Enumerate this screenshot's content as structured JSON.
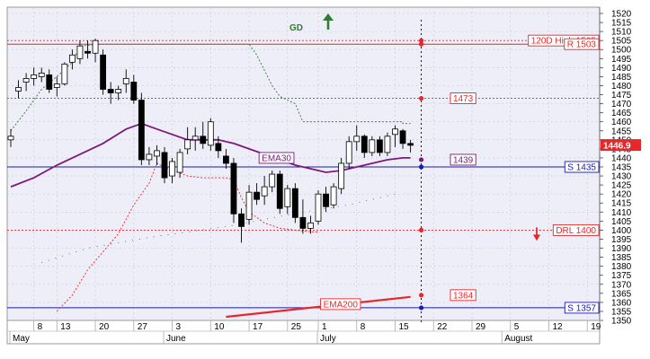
{
  "chart_data": {
    "type": "candlestick",
    "title": "",
    "ylim": [
      1350,
      1520
    ],
    "y_ticks": [
      1350,
      1355,
      1360,
      1365,
      1370,
      1375,
      1380,
      1385,
      1390,
      1395,
      1400,
      1405,
      1410,
      1415,
      1420,
      1425,
      1430,
      1435,
      1440,
      1445,
      1450,
      1455,
      1460,
      1465,
      1470,
      1475,
      1480,
      1485,
      1490,
      1495,
      1500,
      1505,
      1510,
      1515,
      1520
    ],
    "x_ticks": [
      {
        "label": "8",
        "x": 3
      },
      {
        "label": "13",
        "x": 6
      },
      {
        "label": "20",
        "x": 11
      },
      {
        "label": "27",
        "x": 16
      },
      {
        "label": "3",
        "x": 21
      },
      {
        "label": "10",
        "x": 26
      },
      {
        "label": "17",
        "x": 31
      },
      {
        "label": "25",
        "x": 36
      },
      {
        "label": "1",
        "x": 40
      },
      {
        "label": "8",
        "x": 45
      },
      {
        "label": "15",
        "x": 50
      },
      {
        "label": "22",
        "x": 55
      },
      {
        "label": "29",
        "x": 60
      },
      {
        "label": "5",
        "x": 65
      },
      {
        "label": "12",
        "x": 70
      },
      {
        "label": "19",
        "x": 75
      }
    ],
    "months": [
      {
        "label": "May",
        "x": 0
      },
      {
        "label": "June",
        "x": 20
      },
      {
        "label": "July",
        "x": 40
      },
      {
        "label": "August",
        "x": 64
      }
    ],
    "last_price": "1446.9",
    "ohlc": [
      {
        "x": 0,
        "o": 1450,
        "h": 1456,
        "l": 1446,
        "c": 1452
      },
      {
        "x": 1,
        "o": 1477,
        "h": 1483,
        "l": 1473,
        "c": 1479
      },
      {
        "x": 2,
        "o": 1482,
        "h": 1487,
        "l": 1477,
        "c": 1484
      },
      {
        "x": 3,
        "o": 1484,
        "h": 1490,
        "l": 1480,
        "c": 1486
      },
      {
        "x": 4,
        "o": 1485,
        "h": 1490,
        "l": 1482,
        "c": 1487
      },
      {
        "x": 5,
        "o": 1486,
        "h": 1489,
        "l": 1476,
        "c": 1478
      },
      {
        "x": 6,
        "o": 1479,
        "h": 1485,
        "l": 1474,
        "c": 1481
      },
      {
        "x": 7,
        "o": 1481,
        "h": 1493,
        "l": 1480,
        "c": 1492
      },
      {
        "x": 8,
        "o": 1493,
        "h": 1500,
        "l": 1489,
        "c": 1497
      },
      {
        "x": 9,
        "o": 1495,
        "h": 1505,
        "l": 1492,
        "c": 1502
      },
      {
        "x": 10,
        "o": 1499,
        "h": 1505,
        "l": 1495,
        "c": 1498
      },
      {
        "x": 11,
        "o": 1498,
        "h": 1506,
        "l": 1493,
        "c": 1505
      },
      {
        "x": 12,
        "o": 1497,
        "h": 1500,
        "l": 1475,
        "c": 1478
      },
      {
        "x": 13,
        "o": 1478,
        "h": 1482,
        "l": 1470,
        "c": 1476
      },
      {
        "x": 14,
        "o": 1476,
        "h": 1480,
        "l": 1472,
        "c": 1478
      },
      {
        "x": 15,
        "o": 1481,
        "h": 1489,
        "l": 1476,
        "c": 1484
      },
      {
        "x": 16,
        "o": 1482,
        "h": 1486,
        "l": 1470,
        "c": 1472
      },
      {
        "x": 17,
        "o": 1472,
        "h": 1476,
        "l": 1436,
        "c": 1439
      },
      {
        "x": 18,
        "o": 1439,
        "h": 1446,
        "l": 1436,
        "c": 1442
      },
      {
        "x": 19,
        "o": 1441,
        "h": 1447,
        "l": 1436,
        "c": 1444
      },
      {
        "x": 20,
        "o": 1443,
        "h": 1446,
        "l": 1426,
        "c": 1429
      },
      {
        "x": 21,
        "o": 1430,
        "h": 1440,
        "l": 1426,
        "c": 1438
      },
      {
        "x": 22,
        "o": 1432,
        "h": 1445,
        "l": 1429,
        "c": 1443
      },
      {
        "x": 23,
        "o": 1445,
        "h": 1457,
        "l": 1442,
        "c": 1450
      },
      {
        "x": 24,
        "o": 1450,
        "h": 1457,
        "l": 1444,
        "c": 1452
      },
      {
        "x": 25,
        "o": 1452,
        "h": 1460,
        "l": 1445,
        "c": 1448
      },
      {
        "x": 26,
        "o": 1447,
        "h": 1462,
        "l": 1444,
        "c": 1460
      },
      {
        "x": 27,
        "o": 1448,
        "h": 1452,
        "l": 1440,
        "c": 1444
      },
      {
        "x": 28,
        "o": 1441,
        "h": 1445,
        "l": 1434,
        "c": 1437
      },
      {
        "x": 29,
        "o": 1437,
        "h": 1440,
        "l": 1404,
        "c": 1409
      },
      {
        "x": 30,
        "o": 1409,
        "h": 1412,
        "l": 1393,
        "c": 1402
      },
      {
        "x": 31,
        "o": 1406,
        "h": 1425,
        "l": 1403,
        "c": 1421
      },
      {
        "x": 32,
        "o": 1421,
        "h": 1426,
        "l": 1414,
        "c": 1417
      },
      {
        "x": 33,
        "o": 1419,
        "h": 1430,
        "l": 1414,
        "c": 1424
      },
      {
        "x": 34,
        "o": 1424,
        "h": 1433,
        "l": 1421,
        "c": 1431
      },
      {
        "x": 35,
        "o": 1431,
        "h": 1433,
        "l": 1409,
        "c": 1412
      },
      {
        "x": 36,
        "o": 1413,
        "h": 1425,
        "l": 1409,
        "c": 1423
      },
      {
        "x": 37,
        "o": 1423,
        "h": 1426,
        "l": 1404,
        "c": 1407
      },
      {
        "x": 38,
        "o": 1407,
        "h": 1417,
        "l": 1398,
        "c": 1401
      },
      {
        "x": 39,
        "o": 1401,
        "h": 1408,
        "l": 1398,
        "c": 1404
      },
      {
        "x": 40,
        "o": 1405,
        "h": 1422,
        "l": 1403,
        "c": 1420
      },
      {
        "x": 41,
        "o": 1420,
        "h": 1424,
        "l": 1410,
        "c": 1413
      },
      {
        "x": 42,
        "o": 1414,
        "h": 1426,
        "l": 1412,
        "c": 1424
      },
      {
        "x": 43,
        "o": 1423,
        "h": 1440,
        "l": 1420,
        "c": 1437
      },
      {
        "x": 44,
        "o": 1437,
        "h": 1452,
        "l": 1434,
        "c": 1449
      },
      {
        "x": 45,
        "o": 1449,
        "h": 1458,
        "l": 1444,
        "c": 1452
      },
      {
        "x": 46,
        "o": 1452,
        "h": 1453,
        "l": 1440,
        "c": 1443
      },
      {
        "x": 47,
        "o": 1443,
        "h": 1452,
        "l": 1441,
        "c": 1450
      },
      {
        "x": 48,
        "o": 1450,
        "h": 1452,
        "l": 1441,
        "c": 1443
      },
      {
        "x": 49,
        "o": 1443,
        "h": 1454,
        "l": 1441,
        "c": 1452
      },
      {
        "x": 50,
        "o": 1453,
        "h": 1458,
        "l": 1446,
        "c": 1456
      },
      {
        "x": 51,
        "o": 1455,
        "h": 1456,
        "l": 1445,
        "c": 1448
      },
      {
        "x": 52,
        "o": 1448,
        "h": 1450,
        "l": 1443,
        "c": 1447
      }
    ],
    "ema30": [
      [
        0,
        1424
      ],
      [
        3,
        1429
      ],
      [
        6,
        1436
      ],
      [
        9,
        1442
      ],
      [
        12,
        1448
      ],
      [
        15,
        1456
      ],
      [
        17,
        1459
      ],
      [
        19,
        1456
      ],
      [
        21,
        1453
      ],
      [
        23,
        1450
      ],
      [
        25,
        1450
      ],
      [
        27,
        1450
      ],
      [
        29,
        1448
      ],
      [
        31,
        1445
      ],
      [
        33,
        1442
      ],
      [
        35,
        1439
      ],
      [
        37,
        1436
      ],
      [
        39,
        1434
      ],
      [
        41,
        1432
      ],
      [
        43,
        1433
      ],
      [
        45,
        1435
      ],
      [
        47,
        1437
      ],
      [
        49,
        1439
      ],
      [
        51,
        1440
      ],
      [
        52,
        1440
      ]
    ],
    "ema200": [
      [
        28,
        1352
      ],
      [
        52,
        1363
      ]
    ],
    "stop_line": [
      [
        0,
        1455
      ],
      [
        2,
        1466
      ],
      [
        4,
        1478
      ],
      [
        6,
        1485
      ],
      [
        8,
        1493
      ],
      [
        9,
        1502
      ],
      [
        12,
        1503
      ],
      [
        16,
        1503
      ],
      [
        21,
        1503
      ],
      [
        27,
        1503
      ],
      [
        31,
        1503
      ],
      [
        32,
        1497
      ],
      [
        34,
        1480
      ],
      [
        35,
        1474
      ],
      [
        37,
        1470
      ],
      [
        38,
        1460
      ],
      [
        51,
        1460
      ],
      [
        51,
        1459
      ],
      [
        52,
        1459
      ]
    ],
    "support_line": [
      [
        6,
        1355
      ],
      [
        8,
        1364
      ],
      [
        10,
        1378
      ],
      [
        12,
        1388
      ],
      [
        14,
        1398
      ],
      [
        16,
        1414
      ],
      [
        18,
        1426
      ],
      [
        19,
        1437
      ],
      [
        20,
        1435
      ],
      [
        23,
        1430
      ],
      [
        25,
        1429
      ],
      [
        28,
        1429
      ],
      [
        29,
        1428
      ],
      [
        30,
        1418
      ],
      [
        31,
        1410
      ],
      [
        33,
        1404
      ],
      [
        35,
        1401
      ],
      [
        37,
        1400
      ],
      [
        39,
        1399
      ],
      [
        40,
        1399
      ]
    ],
    "hlines": [
      {
        "value": 1505,
        "label": "120D High 1505",
        "style": "dashed"
      },
      {
        "value": 1503,
        "label": "R 1503",
        "style": "solid"
      },
      {
        "value": 1473,
        "label": "1473",
        "style": "dashed"
      },
      {
        "value": 1439,
        "label": "1439",
        "style": "none"
      },
      {
        "value": 1435,
        "label": "S 1435",
        "style": "solid-blue"
      },
      {
        "value": 1400,
        "label": "DRL 1400",
        "style": "dashed"
      },
      {
        "value": 1364,
        "label": "1364",
        "style": "none"
      },
      {
        "value": 1357,
        "label": "S 1357",
        "style": "solid-blue"
      }
    ],
    "annotations": {
      "gd_text": "GD",
      "ema30_label": "EMA30",
      "ema200_label": "EMA200"
    },
    "colors": {
      "bg": "#eeeef8",
      "red": "#e8272a",
      "green": "#2e7d32",
      "purple": "#7b1a7b",
      "blue": "#1a1ab0"
    }
  }
}
